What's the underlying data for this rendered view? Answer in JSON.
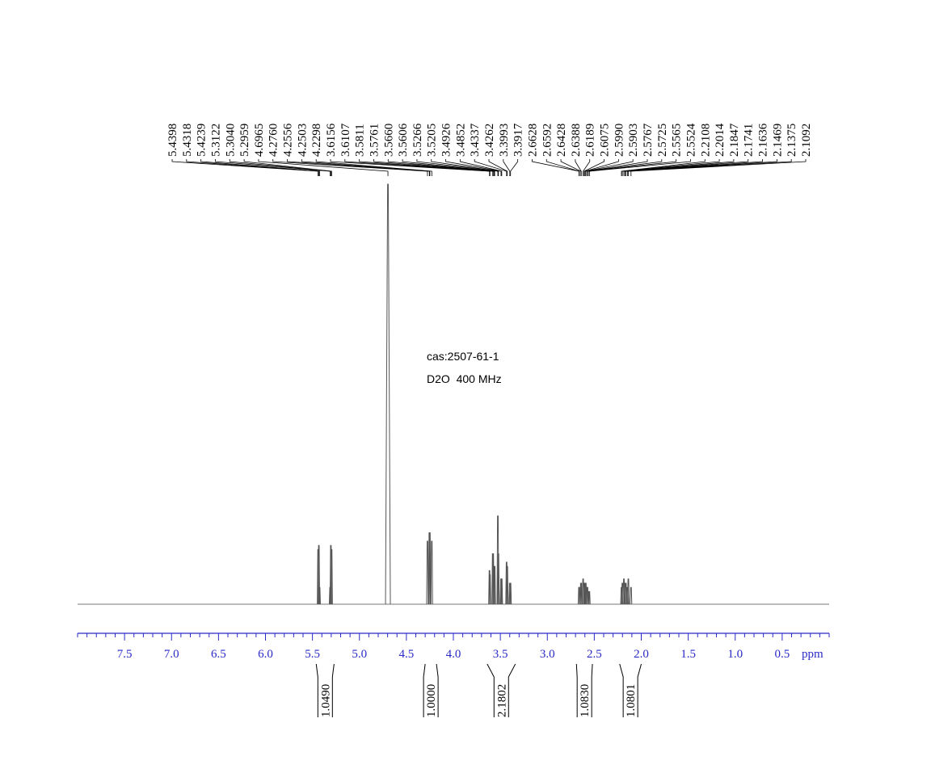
{
  "chart_data": {
    "type": "nmr",
    "annotations": [
      "cas:2507-61-1",
      "D2O  400 MHz"
    ],
    "xlabel": "ppm",
    "xlim": [
      8,
      0
    ],
    "ylim": [
      0,
      100
    ],
    "color": "#555555",
    "axis_color": "#2a2ac8",
    "xticks": [
      {
        "value": 7.5,
        "label": "7.5"
      },
      {
        "value": 7,
        "label": "7.0"
      },
      {
        "value": 6.5,
        "label": "6.5"
      },
      {
        "value": 6,
        "label": "6.0"
      },
      {
        "value": 5.5,
        "label": "5.5"
      },
      {
        "value": 5,
        "label": "5.0"
      },
      {
        "value": 4.5,
        "label": "4.5"
      },
      {
        "value": 4,
        "label": "4.0"
      },
      {
        "value": 3.5,
        "label": "3.5"
      },
      {
        "value": 3,
        "label": "3.0"
      },
      {
        "value": 2.5,
        "label": "2.5"
      },
      {
        "value": 2,
        "label": "2.0"
      },
      {
        "value": 1.5,
        "label": "1.5"
      },
      {
        "value": 1,
        "label": "1.0"
      },
      {
        "value": 0.5,
        "label": "0.5"
      }
    ],
    "xminorticks": [
      0,
      0.1,
      0.2,
      0.3,
      0.4,
      0.6,
      0.7,
      0.8,
      0.9,
      1.1,
      1.2,
      1.3,
      1.4,
      1.6,
      1.7,
      1.8,
      1.9,
      2.1,
      2.2,
      2.3,
      2.4,
      2.6,
      2.7,
      2.8,
      2.9,
      3.1,
      3.2,
      3.3,
      3.4,
      3.6,
      3.7,
      3.8,
      3.9,
      4.1,
      4.2,
      4.3,
      4.4,
      4.6,
      4.7,
      4.8,
      4.9,
      5.1,
      5.2,
      5.3,
      5.4,
      5.6,
      5.7,
      5.8,
      5.9,
      6.1,
      6.2,
      6.3,
      6.4,
      6.6,
      6.7,
      6.8,
      6.9,
      7.1,
      7.2,
      7.3,
      7.4,
      7.6,
      7.7,
      7.8,
      7.9,
      8
    ],
    "peaks": [
      {
        "value": 5.4398,
        "label": "5.4398"
      },
      {
        "value": 5.4318,
        "label": "5.4318"
      },
      {
        "value": 5.4239,
        "label": "5.4239"
      },
      {
        "value": 5.3122,
        "label": "5.3122"
      },
      {
        "value": 5.304,
        "label": "5.3040"
      },
      {
        "value": 5.2959,
        "label": "5.2959"
      },
      {
        "value": 4.6965,
        "label": "4.6965"
      },
      {
        "value": 4.276,
        "label": "4.2760"
      },
      {
        "value": 4.2556,
        "label": "4.2556"
      },
      {
        "value": 4.2503,
        "label": "4.2503"
      },
      {
        "value": 4.2298,
        "label": "4.2298"
      },
      {
        "value": 3.6156,
        "label": "3.6156"
      },
      {
        "value": 3.6107,
        "label": "3.6107"
      },
      {
        "value": 3.5811,
        "label": "3.5811"
      },
      {
        "value": 3.5761,
        "label": "3.5761"
      },
      {
        "value": 3.566,
        "label": "3.5660"
      },
      {
        "value": 3.5606,
        "label": "3.5606"
      },
      {
        "value": 3.5266,
        "label": "3.5266"
      },
      {
        "value": 3.5205,
        "label": "3.5205"
      },
      {
        "value": 3.4926,
        "label": "3.4926"
      },
      {
        "value": 3.4852,
        "label": "3.4852"
      },
      {
        "value": 3.4337,
        "label": "3.4337"
      },
      {
        "value": 3.4262,
        "label": "3.4262"
      },
      {
        "value": 3.3993,
        "label": "3.3993"
      },
      {
        "value": 3.3917,
        "label": "3.3917"
      },
      {
        "value": 2.6628,
        "label": "2.6628"
      },
      {
        "value": 2.6592,
        "label": "2.6592"
      },
      {
        "value": 2.6428,
        "label": "2.6428"
      },
      {
        "value": 2.6388,
        "label": "2.6388"
      },
      {
        "value": 2.6189,
        "label": "2.6189"
      },
      {
        "value": 2.6075,
        "label": "2.6075"
      },
      {
        "value": 2.599,
        "label": "2.5990"
      },
      {
        "value": 2.5903,
        "label": "2.5903"
      },
      {
        "value": 2.5767,
        "label": "2.5767"
      },
      {
        "value": 2.5725,
        "label": "2.5725"
      },
      {
        "value": 2.5565,
        "label": "2.5565"
      },
      {
        "value": 2.5524,
        "label": "2.5524"
      },
      {
        "value": 2.2108,
        "label": "2.2108"
      },
      {
        "value": 2.2014,
        "label": "2.2014"
      },
      {
        "value": 2.1847,
        "label": "2.1847"
      },
      {
        "value": 2.1741,
        "label": "2.1741"
      },
      {
        "value": 2.1636,
        "label": "2.1636"
      },
      {
        "value": 2.1469,
        "label": "2.1469"
      },
      {
        "value": 2.1375,
        "label": "2.1375"
      },
      {
        "value": 2.1092,
        "label": "2.1092"
      }
    ],
    "values": [
      13,
      14,
      4,
      4,
      14,
      13,
      100,
      15,
      17,
      17,
      15,
      8,
      7,
      12,
      12,
      9,
      9,
      21,
      12,
      6,
      6,
      10,
      9,
      5,
      5,
      4,
      4,
      5,
      5,
      6,
      5,
      5,
      5,
      4,
      4,
      3,
      3,
      4,
      5,
      6,
      5,
      5,
      4,
      6,
      4
    ],
    "integrals": [
      {
        "range": [
          5.46,
          5.27
        ],
        "value": 1.049,
        "label": "1.0490"
      },
      {
        "range": [
          4.3,
          4.18
        ],
        "value": 1,
        "label": "1.0000"
      },
      {
        "range": [
          3.64,
          3.34
        ],
        "value": 2.1802,
        "label": "2.1802"
      },
      {
        "range": [
          2.69,
          2.52
        ],
        "value": 1.083,
        "label": "1.0830"
      },
      {
        "range": [
          2.23,
          2.0
        ],
        "value": 1.0801,
        "label": "1.0801"
      }
    ]
  }
}
